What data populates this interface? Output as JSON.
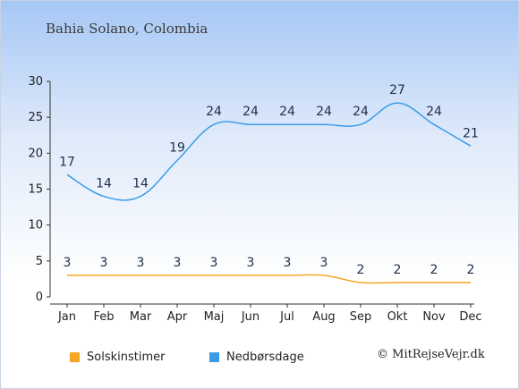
{
  "location": "Bahia Solano, Colombia",
  "copyright": "© MitRejseVejr.dk",
  "colors": {
    "sunshine": "#f5a623",
    "rain": "#3b9be6",
    "axis": "#333333",
    "label": "#1f2d4a"
  },
  "legend": [
    {
      "label": "Solskinstimer",
      "color": "#f5a623"
    },
    {
      "label": "Nedbørsdage",
      "color": "#3b9be6"
    }
  ],
  "chart_data": {
    "type": "line",
    "categories": [
      "Jan",
      "Feb",
      "Mar",
      "Apr",
      "Maj",
      "Jun",
      "Jul",
      "Aug",
      "Sep",
      "Okt",
      "Nov",
      "Dec"
    ],
    "ylim": [
      0,
      30
    ],
    "yticks": [
      0,
      5,
      10,
      15,
      20,
      25,
      30
    ],
    "grid": false,
    "legend_position": "bottom",
    "series": [
      {
        "name": "Solskinstimer",
        "color": "#f5a623",
        "values": [
          3,
          3,
          3,
          3,
          3,
          3,
          3,
          3,
          2,
          2,
          2,
          2
        ]
      },
      {
        "name": "Nedbørsdage",
        "color": "#3b9be6",
        "values": [
          17,
          14,
          14,
          19,
          24,
          24,
          24,
          24,
          24,
          27,
          24,
          21
        ]
      }
    ]
  }
}
